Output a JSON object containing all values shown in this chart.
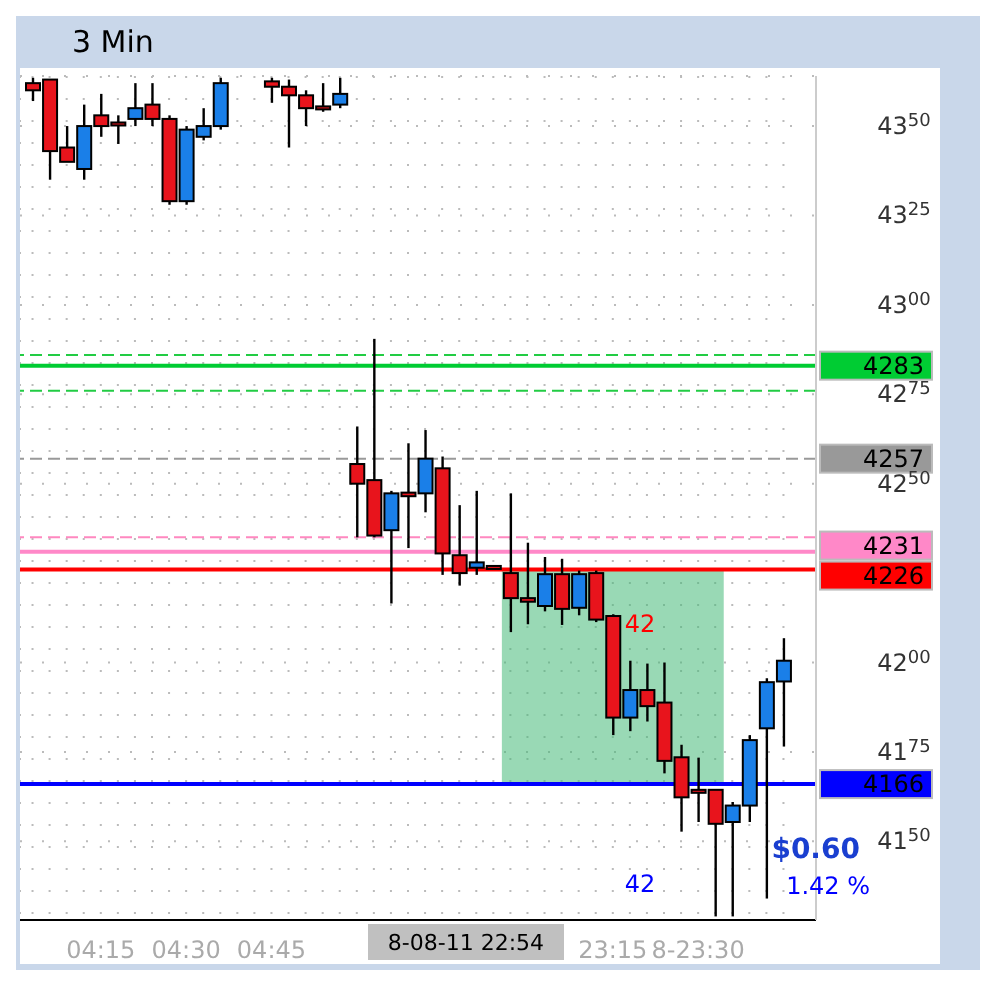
{
  "chart_data": {
    "type": "candlestick",
    "title": "3 Min",
    "categories": [
      null,
      null,
      null,
      null,
      "04:15",
      null,
      null,
      null,
      null,
      "04:30",
      null,
      null,
      null,
      null,
      "04:45",
      null,
      null,
      null,
      null,
      null,
      null,
      null,
      null,
      null,
      null,
      null,
      null,
      null,
      null,
      null,
      null,
      null,
      null,
      null,
      "23:15",
      null,
      null,
      null,
      null,
      "8-23:30",
      null,
      null,
      null,
      null,
      null
    ],
    "ohlc": [
      [
        4362,
        4363.5,
        4357,
        4360
      ],
      [
        4363,
        4363,
        4335,
        4343
      ],
      [
        4344,
        4350,
        4340,
        4340
      ],
      [
        4338,
        4356,
        4335,
        4350
      ],
      [
        4353,
        4359,
        4347,
        4350
      ],
      [
        4351,
        4353,
        4345,
        4351
      ],
      [
        4352,
        4362,
        4350,
        4355
      ],
      [
        4356,
        4362,
        4350,
        4352
      ],
      [
        4352,
        4353,
        4328,
        4329
      ],
      [
        4329,
        4350,
        4328,
        4349
      ],
      [
        4347,
        4355,
        4346,
        4350
      ],
      [
        4350,
        4363.5,
        4349,
        4362
      ],
      null,
      null,
      [
        4362.5,
        4363.5,
        4356.5,
        4361
      ],
      [
        4361,
        4363,
        4344,
        4358.6
      ],
      [
        4358.6,
        4360,
        4350,
        4355
      ],
      [
        4355.5,
        4362,
        4354,
        4355.5
      ],
      [
        4356,
        4363.5,
        4355,
        4359
      ],
      [
        4255.5,
        4266,
        4235,
        4250
      ],
      [
        4251,
        4290.5,
        4235,
        4235.5
      ],
      [
        4237,
        4248,
        4216.5,
        4247.3
      ],
      [
        4247.5,
        4261.3,
        4232,
        4246.5
      ],
      [
        4247.3,
        4265,
        4242,
        4257
      ],
      [
        4254.3,
        4257.6,
        4224.5,
        4230.5
      ],
      [
        4230,
        4244,
        4221.5,
        4225
      ],
      [
        4226.5,
        4248,
        4224.5,
        4228
      ],
      [
        4227,
        4227,
        4227,
        4227
      ],
      [
        4225,
        4247.3,
        4208.5,
        4218
      ],
      [
        4218,
        4233.5,
        4210.7,
        4217
      ],
      [
        4215.8,
        4229.5,
        4214.3,
        4224.7
      ],
      [
        4224.7,
        4229,
        4210.5,
        4215
      ],
      [
        4215.3,
        4225.7,
        4213.2,
        4224.7
      ],
      [
        4225,
        4225.7,
        4211.3,
        4212
      ],
      [
        4213,
        4213.5,
        4179.7,
        4184.6
      ],
      [
        4184.6,
        4200.5,
        4180.8,
        4192.3
      ],
      [
        4192.3,
        4199.7,
        4183.5,
        4187.8
      ],
      [
        4188.8,
        4200,
        4169,
        4172.5
      ],
      [
        4173.5,
        4177,
        4152.7,
        4162.3
      ],
      [
        4164.4,
        4173.4,
        4155.4,
        4164.4
      ],
      [
        4164.4,
        4164.4,
        4129,
        4154.9
      ],
      [
        4155.4,
        4161,
        4129,
        4160
      ],
      [
        4160,
        4179.7,
        4155.4,
        4178.3
      ],
      [
        4181.6,
        4195.6,
        4134,
        4194.5
      ],
      [
        4194.7,
        4206.8,
        4176.5,
        4200.5
      ]
    ],
    "colors": [
      "#e8141c",
      "#e8141c",
      "#e8141c",
      "#1a7fe8",
      "#e8141c",
      "#e8141c",
      "#1a7fe8",
      "#e8141c",
      "#e8141c",
      "#1a7fe8",
      "#1a7fe8",
      "#1a7fe8",
      null,
      null,
      "#e8141c",
      "#e8141c",
      "#e8141c",
      "#e8141c",
      "#1a7fe8",
      "#e8141c",
      "#e8141c",
      "#1a7fe8",
      "#e8141c",
      "#1a7fe8",
      "#e8141c",
      "#e8141c",
      "#1a7fe8",
      "#e8141c",
      "#e8141c",
      "#e8141c",
      "#1a7fe8",
      "#e8141c",
      "#1a7fe8",
      "#e8141c",
      "#e8141c",
      "#1a7fe8",
      "#e8141c",
      "#e8141c",
      "#e8141c",
      "#e8141c",
      "#e8141c",
      "#1a7fe8",
      "#1a7fe8",
      "#1a7fe8",
      "#1a7fe8"
    ],
    "ylim": [
      4128,
      4364
    ],
    "yticks": [
      4350,
      4325,
      4300,
      4275,
      4250,
      4200,
      4175,
      4150
    ],
    "ref_lines": [
      {
        "axis": "y",
        "value": 4286,
        "color": "#22cc44",
        "line_style": "dashed"
      },
      {
        "axis": "y",
        "value": 4283,
        "label": "4283",
        "color": "#00cc33",
        "line_style": "solid"
      },
      {
        "axis": "y",
        "value": 4276,
        "color": "#22cc44",
        "line_style": "dashed"
      },
      {
        "axis": "y",
        "value": 4257,
        "label": "4257",
        "color": "#999999",
        "line_style": "dashed"
      },
      {
        "axis": "y",
        "value": 4235,
        "color": "#ff88c0",
        "line_style": "dashed"
      },
      {
        "axis": "y",
        "value": 4231,
        "label": "4231",
        "color": "#ff88c8",
        "line_style": "solid"
      },
      {
        "axis": "y",
        "value": 4226,
        "label": "4226",
        "color": "#ff0000",
        "line_style": "solid"
      },
      {
        "axis": "y",
        "value": 4166,
        "label": "4166",
        "color": "#0000ff",
        "line_style": "solid"
      }
    ],
    "bands": [
      {
        "axis": "y",
        "from": 4166,
        "to": 4226,
        "color": "#46b978"
      }
    ],
    "annotations": [
      "42",
      "42",
      "$0.60",
      "1.42 %",
      "8-08-11 22:54"
    ],
    "grid": true
  }
}
